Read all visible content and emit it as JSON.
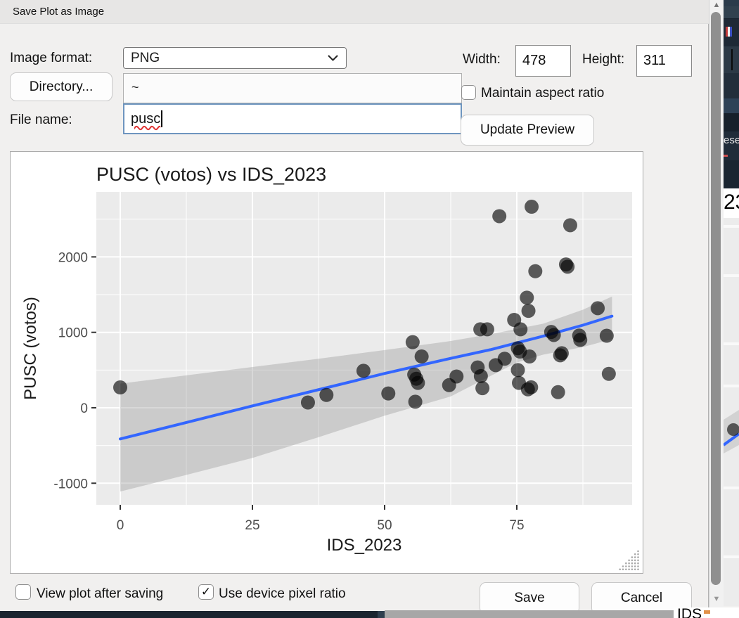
{
  "window": {
    "title": "Save Plot as Image"
  },
  "icons": {
    "checkmark": "✓",
    "scroll_up_arrow": "▲",
    "scroll_down_arrow": "▼"
  },
  "colors": {
    "focus_border": "#6e95bf",
    "spellcheck_underline": "#e03434",
    "accent_line": "#3366ff"
  },
  "format_row": {
    "label": "Image format:",
    "value": "PNG"
  },
  "size_row": {
    "width_label": "Width:",
    "width_value": "478",
    "height_label": "Height:",
    "height_value": "311",
    "maintain_label": "Maintain aspect ratio",
    "maintain_checked": false
  },
  "directory_row": {
    "button_label": "Directory...",
    "path": "~"
  },
  "file_row": {
    "label": "File name:",
    "value": "pusc"
  },
  "preview": {
    "update_button_label": "Update Preview"
  },
  "footer": {
    "view_plot_label": "View plot after saving",
    "view_plot_checked": false,
    "device_ratio_label": "Use device pixel ratio",
    "device_ratio_checked": true,
    "save_label": "Save",
    "cancel_label": "Cancel"
  },
  "background_window": {
    "fragment_ese": "ese",
    "fragment_year": "23",
    "fragment_ids": "IDS"
  },
  "chart_data": {
    "type": "scatter",
    "title": "PUSC (votos) vs IDS_2023",
    "xlabel": "IDS_2023",
    "ylabel": "PUSC (votos)",
    "x_ticks": [
      0,
      25,
      50,
      75
    ],
    "y_ticks": [
      -1000,
      0,
      1000,
      2000
    ],
    "x_minor": [
      12.5,
      37.5,
      62.5,
      87.5
    ],
    "y_minor": [
      -500,
      500,
      1500,
      2500
    ],
    "xlim": [
      -4.6,
      96.9
    ],
    "ylim": [
      -1286,
      2861
    ],
    "legend": "none",
    "grid": true,
    "panel_bg": "#ebebeb",
    "point_color": "#000000",
    "point_opacity": 0.62,
    "smooth_color": "#3366ff",
    "band_color": "#999999",
    "band_opacity": 0.38,
    "points": [
      [
        0,
        270
      ],
      [
        35.5,
        70
      ],
      [
        39,
        170
      ],
      [
        46,
        490
      ],
      [
        50.7,
        190
      ],
      [
        55.3,
        870
      ],
      [
        55.6,
        440
      ],
      [
        56,
        385
      ],
      [
        56.3,
        330
      ],
      [
        55.8,
        80
      ],
      [
        57,
        680
      ],
      [
        62.2,
        300
      ],
      [
        63.6,
        415
      ],
      [
        67.6,
        535
      ],
      [
        68.1,
        1040
      ],
      [
        69.4,
        1040
      ],
      [
        68.2,
        420
      ],
      [
        68.5,
        260
      ],
      [
        71,
        565
      ],
      [
        71.7,
        2540
      ],
      [
        72.7,
        650
      ],
      [
        74.5,
        1165
      ],
      [
        75.2,
        790
      ],
      [
        75.6,
        745
      ],
      [
        75.7,
        1040
      ],
      [
        75.2,
        500
      ],
      [
        75.4,
        330
      ],
      [
        76.9,
        1460
      ],
      [
        77.2,
        1285
      ],
      [
        77.4,
        680
      ],
      [
        77.7,
        272
      ],
      [
        77.1,
        245
      ],
      [
        77.8,
        2665
      ],
      [
        78.5,
        1810
      ],
      [
        81.5,
        1005
      ],
      [
        82,
        965
      ],
      [
        83.2,
        695
      ],
      [
        83.5,
        723
      ],
      [
        82.8,
        207
      ],
      [
        84.3,
        1900
      ],
      [
        84.6,
        1870
      ],
      [
        85.1,
        2420
      ],
      [
        86.8,
        958
      ],
      [
        87,
        900
      ],
      [
        90.3,
        1320
      ],
      [
        92,
        955
      ],
      [
        92.4,
        450
      ]
    ],
    "smooth_line": [
      [
        0,
        -413
      ],
      [
        12.5,
        -195
      ],
      [
        25,
        25
      ],
      [
        37.5,
        240
      ],
      [
        50,
        455
      ],
      [
        62.5,
        655
      ],
      [
        70,
        770
      ],
      [
        75,
        860
      ],
      [
        80,
        950
      ],
      [
        87.5,
        1095
      ],
      [
        93,
        1215
      ]
    ],
    "band_top": [
      [
        0,
        320
      ],
      [
        12.5,
        430
      ],
      [
        25,
        540
      ],
      [
        37.5,
        650
      ],
      [
        50,
        765
      ],
      [
        62.5,
        885
      ],
      [
        70,
        975
      ],
      [
        75,
        1045
      ],
      [
        80,
        1115
      ],
      [
        87.5,
        1300
      ],
      [
        93,
        1475
      ]
    ],
    "band_bottom": [
      [
        0,
        -1110
      ],
      [
        12.5,
        -890
      ],
      [
        25,
        -665
      ],
      [
        37.5,
        -390
      ],
      [
        50,
        -105
      ],
      [
        62.5,
        150
      ],
      [
        70,
        420
      ],
      [
        75,
        600
      ],
      [
        80,
        705
      ],
      [
        87.5,
        805
      ],
      [
        93,
        910
      ]
    ]
  }
}
